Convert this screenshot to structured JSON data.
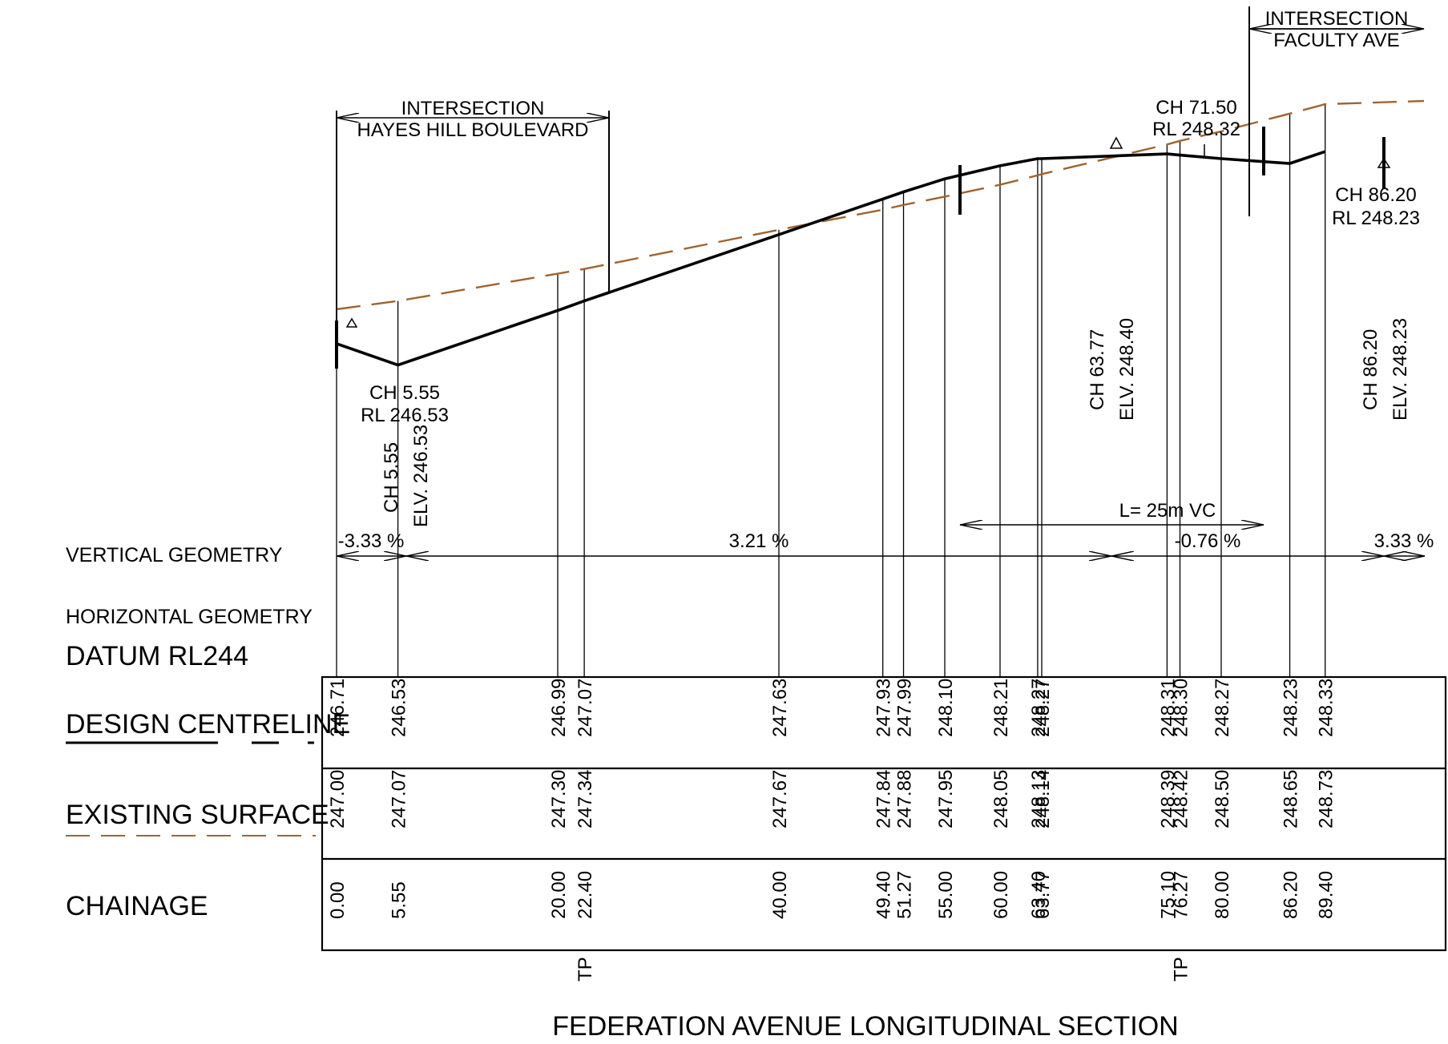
{
  "title": "FEDERATION AVENUE LONGITUDINAL SECTION",
  "colors": {
    "line": "#000000",
    "existing_surface": "#a0642e",
    "background": "#ffffff"
  },
  "labels": {
    "vertical_geometry": "VERTICAL GEOMETRY",
    "horizontal_geometry": "HORIZONTAL GEOMETRY",
    "datum": "DATUM RL244",
    "design_centreline": "DESIGN CENTRELINE",
    "existing_surface": "EXISTING SURFACE",
    "chainage": "CHAINAGE"
  },
  "intersections": [
    {
      "line1": "INTERSECTION",
      "line2": "HAYES HILL BOULEVARD"
    },
    {
      "line1": "INTERSECTION",
      "line2": "FACULTY AVE"
    }
  ],
  "annotations": {
    "low_point": {
      "ch": "CH 5.55",
      "rl": "RL 246.53",
      "vert_ch": "CH 5.55",
      "vert_elv": "ELV. 246.53"
    },
    "high_point": {
      "ch": "CH 71.50",
      "rl": "RL 248.32"
    },
    "end_point": {
      "ch": "CH 86.20",
      "rl": "RL 248.23",
      "vert_ch": "CH 86.20",
      "vert_elv": "ELV. 248.23"
    },
    "ip_point": {
      "vert_ch": "CH 63.77",
      "vert_elv": "ELV. 248.40"
    },
    "vertical_curve": "L= 25m VC",
    "tp_marker": "TP"
  },
  "grades": [
    "-3.33 %",
    "3.21 %",
    "-0.76 %",
    "3.33 %"
  ],
  "chart_data": {
    "type": "table",
    "chainage": [
      "0.00",
      "5.55",
      "20.00",
      "22.40",
      "40.00",
      "49.40",
      "51.27",
      "55.00",
      "60.00",
      "63.40",
      "63.77",
      "75.10",
      "76.27",
      "80.00",
      "86.20",
      "89.40"
    ],
    "design_centreline": [
      "246.71",
      "246.53",
      "246.99",
      "247.07",
      "247.63",
      "247.93",
      "247.99",
      "248.10",
      "248.21",
      "248.27",
      "248.27",
      "248.31",
      "248.30",
      "248.27",
      "248.23",
      "248.33"
    ],
    "existing_surface": [
      "247.00",
      "247.07",
      "247.30",
      "247.34",
      "247.67",
      "247.84",
      "247.88",
      "247.95",
      "248.05",
      "248.13",
      "248.14",
      "248.39",
      "248.42",
      "248.50",
      "248.65",
      "248.73"
    ],
    "tp_chainages": [
      "22.40",
      "76.27"
    ],
    "datum_rl": "244"
  }
}
